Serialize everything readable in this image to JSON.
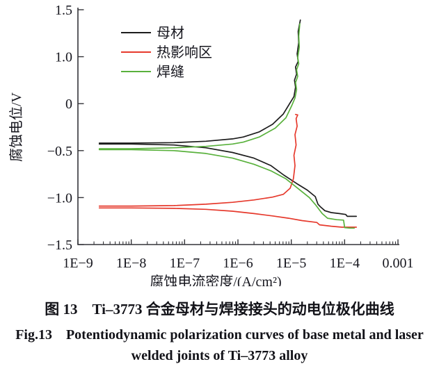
{
  "figure": {
    "caption_cn": "图 13　Ti–3773 合金母材与焊接接头的动电位极化曲线",
    "caption_en_line1": "Fig.13　Potentiodynamic polarization curves of base metal and laser",
    "caption_en_line2": "welded joints of Ti–3773 alloy"
  },
  "chart_data": {
    "type": "line",
    "title": "",
    "xlabel": "腐蚀电流密度/(A/cm²)",
    "ylabel": "腐蚀电位/V",
    "x_scale": "log10",
    "x_range_log10": [
      -9,
      -3
    ],
    "x_tick_labels": [
      "1E−9",
      "1E−8",
      "1E−7",
      "1E−6",
      "1E−5",
      "1E−4",
      "0.001"
    ],
    "x_tick_log_values": [
      -9,
      -8,
      -7,
      -6,
      -5,
      -4,
      -3
    ],
    "y_tick_labels": [
      "1.5",
      "1.0",
      "0",
      "−0.5",
      "−1.0",
      "−1.5"
    ],
    "y_tick_values": [
      1.5,
      1.0,
      0,
      -0.5,
      -1.0,
      -1.5
    ],
    "grid": "off",
    "legend_position": "top-left-inside",
    "axis_color": "#333338",
    "text_color": "#16161e",
    "series": [
      {
        "id": "base-metal",
        "name": "母材",
        "color": "#1c1c1c",
        "corrosion_potential_V": -0.42,
        "anodic": [
          [
            -8.6,
            -0.42
          ],
          [
            -8.0,
            -0.42
          ],
          [
            -7.2,
            -0.415
          ],
          [
            -6.6,
            -0.4
          ],
          [
            -6.1,
            -0.375
          ],
          [
            -5.9,
            -0.355
          ],
          [
            -5.6,
            -0.3
          ],
          [
            -5.35,
            -0.22
          ],
          [
            -5.15,
            -0.11
          ],
          [
            -5.02,
            0.02
          ],
          [
            -4.95,
            0.15
          ],
          [
            -4.92,
            0.35
          ],
          [
            -4.94,
            0.5
          ],
          [
            -4.9,
            0.63
          ],
          [
            -4.92,
            0.78
          ],
          [
            -4.87,
            0.9
          ],
          [
            -4.89,
            1.03
          ],
          [
            -4.86,
            1.15
          ],
          [
            -4.87,
            1.27
          ],
          [
            -4.83,
            1.39
          ]
        ],
        "cathodic": [
          [
            -8.6,
            -0.43
          ],
          [
            -8.0,
            -0.43
          ],
          [
            -7.2,
            -0.44
          ],
          [
            -6.6,
            -0.47
          ],
          [
            -6.1,
            -0.52
          ],
          [
            -5.7,
            -0.58
          ],
          [
            -5.38,
            -0.66
          ],
          [
            -5.14,
            -0.76
          ],
          [
            -4.9,
            -0.85
          ],
          [
            -4.7,
            -0.92
          ],
          [
            -4.55,
            -0.99
          ],
          [
            -4.5,
            -1.07
          ],
          [
            -4.45,
            -1.1
          ],
          [
            -4.37,
            -1.14
          ],
          [
            -4.25,
            -1.16
          ],
          [
            -4.1,
            -1.17
          ],
          [
            -3.98,
            -1.18
          ],
          [
            -3.95,
            -1.2
          ],
          [
            -3.78,
            -1.2
          ]
        ]
      },
      {
        "id": "haz",
        "name": "热影响区",
        "color": "#e6392c",
        "corrosion_potential_V": -1.1,
        "anodic": [
          [
            -8.6,
            -1.09
          ],
          [
            -8.0,
            -1.09
          ],
          [
            -7.2,
            -1.085
          ],
          [
            -6.6,
            -1.07
          ],
          [
            -6.1,
            -1.05
          ],
          [
            -5.7,
            -1.025
          ],
          [
            -5.35,
            -0.995
          ],
          [
            -5.15,
            -0.965
          ],
          [
            -5.02,
            -0.9
          ],
          [
            -4.96,
            -0.8
          ],
          [
            -4.93,
            -0.66
          ],
          [
            -4.95,
            -0.55
          ],
          [
            -4.91,
            -0.44
          ],
          [
            -4.93,
            -0.33
          ],
          [
            -4.89,
            -0.24
          ],
          [
            -4.91,
            -0.16
          ],
          [
            -4.88,
            -0.12
          ],
          [
            -4.92,
            -0.115
          ]
        ],
        "cathodic": [
          [
            -8.6,
            -1.11
          ],
          [
            -8.0,
            -1.11
          ],
          [
            -7.2,
            -1.115
          ],
          [
            -6.6,
            -1.125
          ],
          [
            -6.1,
            -1.145
          ],
          [
            -5.7,
            -1.17
          ],
          [
            -5.35,
            -1.195
          ],
          [
            -5.05,
            -1.22
          ],
          [
            -4.8,
            -1.245
          ],
          [
            -4.52,
            -1.265
          ],
          [
            -4.47,
            -1.29
          ],
          [
            -4.25,
            -1.305
          ],
          [
            -4.05,
            -1.315
          ],
          [
            -3.78,
            -1.315
          ]
        ]
      },
      {
        "id": "weld",
        "name": "焊缝",
        "color": "#59b13c",
        "corrosion_potential_V": -0.48,
        "anodic": [
          [
            -8.6,
            -0.48
          ],
          [
            -8.0,
            -0.48
          ],
          [
            -7.2,
            -0.47
          ],
          [
            -6.6,
            -0.455
          ],
          [
            -6.1,
            -0.43
          ],
          [
            -5.9,
            -0.41
          ],
          [
            -5.6,
            -0.355
          ],
          [
            -5.3,
            -0.26
          ],
          [
            -5.1,
            -0.15
          ],
          [
            -4.99,
            -0.02
          ],
          [
            -4.93,
            0.12
          ],
          [
            -4.9,
            0.3
          ],
          [
            -4.92,
            0.45
          ],
          [
            -4.88,
            0.58
          ],
          [
            -4.9,
            0.72
          ],
          [
            -4.86,
            0.85
          ],
          [
            -4.88,
            0.98
          ],
          [
            -4.85,
            1.1
          ],
          [
            -4.86,
            1.22
          ],
          [
            -4.84,
            1.35
          ]
        ],
        "cathodic": [
          [
            -8.6,
            -0.49
          ],
          [
            -8.0,
            -0.49
          ],
          [
            -7.2,
            -0.5
          ],
          [
            -6.6,
            -0.53
          ],
          [
            -6.1,
            -0.58
          ],
          [
            -5.7,
            -0.645
          ],
          [
            -5.38,
            -0.715
          ],
          [
            -5.1,
            -0.8
          ],
          [
            -4.88,
            -0.9
          ],
          [
            -4.66,
            -1.0
          ],
          [
            -4.54,
            -1.08
          ],
          [
            -4.42,
            -1.17
          ],
          [
            -4.32,
            -1.22
          ],
          [
            -4.15,
            -1.235
          ],
          [
            -4.02,
            -1.24
          ],
          [
            -4.0,
            -1.32
          ],
          [
            -3.9,
            -1.325
          ],
          [
            -3.82,
            -1.325
          ]
        ]
      }
    ]
  }
}
